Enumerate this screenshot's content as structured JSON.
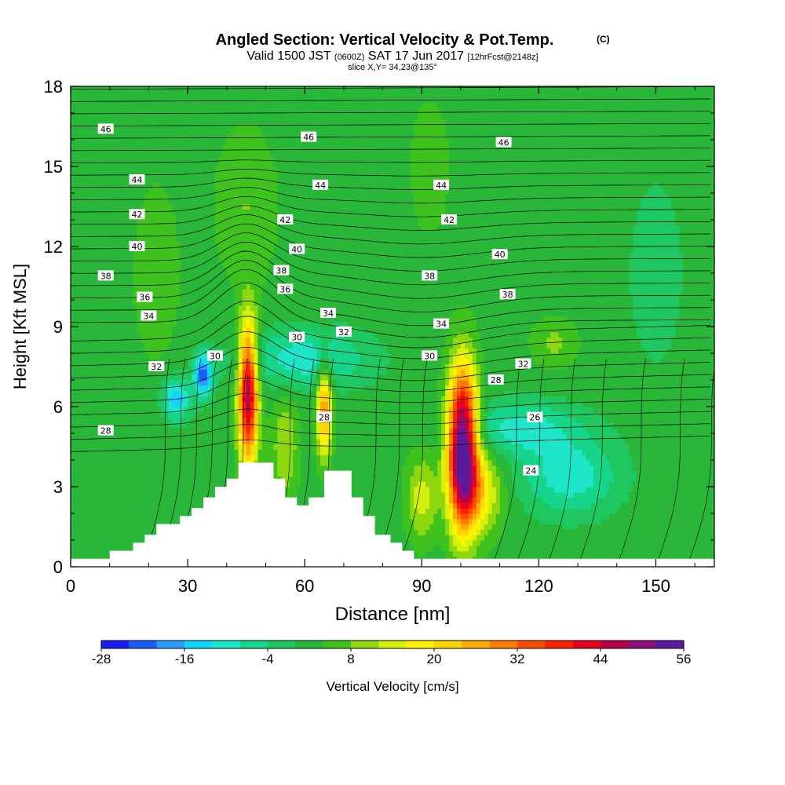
{
  "chart_data": {
    "type": "heatmap",
    "title": "Angled Section: Vertical Velocity & Pot.Temp.",
    "title_suffix": "(C)",
    "subtitle": {
      "valid_prefix": "Valid 1500 JST",
      "zulu": "(0600Z)",
      "date": "SAT 17 Jun 2017",
      "forecast": "[12hrFcst@2148z]"
    },
    "slice": "slice X,Y= 34,23@135°",
    "xlabel": "Distance [nm]",
    "ylabel": "Height [Kft MSL]",
    "xlim": [
      0,
      165
    ],
    "ylim": [
      0,
      18
    ],
    "x_ticks": [
      "0",
      "30",
      "60",
      "90",
      "120",
      "150"
    ],
    "y_ticks": [
      "0",
      "3",
      "6",
      "9",
      "12",
      "15",
      "18"
    ],
    "colorbar": {
      "label": "Vertical Velocity [cm/s]",
      "tick_labels": [
        "-28",
        "-16",
        "-4",
        "8",
        "20",
        "32",
        "44",
        "56"
      ],
      "min": -28,
      "max": 56,
      "step": 4,
      "colors": [
        "#1b1bff",
        "#1c5cff",
        "#2a9bff",
        "#12d5ff",
        "#1fe6c8",
        "#16d68c",
        "#1ec760",
        "#29b73a",
        "#3fc21e",
        "#8fd80f",
        "#d6f00d",
        "#fff200",
        "#ffd400",
        "#ffaa00",
        "#ff7a00",
        "#ff4d00",
        "#ff2000",
        "#e8001e",
        "#b8004a",
        "#8e0e7a",
        "#5a1a9e"
      ]
    },
    "terrain_profile": [
      [
        0,
        0.3
      ],
      [
        10,
        0.3
      ],
      [
        10,
        0.6
      ],
      [
        16,
        0.6
      ],
      [
        16,
        0.9
      ],
      [
        19,
        0.9
      ],
      [
        19,
        1.2
      ],
      [
        22,
        1.2
      ],
      [
        22,
        1.6
      ],
      [
        28,
        1.6
      ],
      [
        28,
        1.9
      ],
      [
        31,
        1.9
      ],
      [
        31,
        2.2
      ],
      [
        34,
        2.2
      ],
      [
        34,
        2.6
      ],
      [
        37,
        2.6
      ],
      [
        37,
        3.0
      ],
      [
        40,
        3.0
      ],
      [
        40,
        3.3
      ],
      [
        43,
        3.3
      ],
      [
        43,
        3.9
      ],
      [
        52,
        3.9
      ],
      [
        52,
        3.3
      ],
      [
        55,
        3.3
      ],
      [
        55,
        2.6
      ],
      [
        58,
        2.6
      ],
      [
        58,
        2.3
      ],
      [
        61,
        2.3
      ],
      [
        61,
        2.6
      ],
      [
        65,
        2.6
      ],
      [
        65,
        3.6
      ],
      [
        72,
        3.6
      ],
      [
        72,
        2.6
      ],
      [
        75,
        2.6
      ],
      [
        75,
        1.9
      ],
      [
        78,
        1.9
      ],
      [
        78,
        1.2
      ],
      [
        82,
        1.2
      ],
      [
        82,
        0.9
      ],
      [
        85,
        0.9
      ],
      [
        85,
        0.6
      ],
      [
        88,
        0.6
      ],
      [
        88,
        0.3
      ],
      [
        165,
        0.3
      ]
    ],
    "velocity_features": [
      {
        "x": 45.5,
        "z": 6.5,
        "peak": 46,
        "sx": 2.5,
        "sz": 2.6
      },
      {
        "x": 65,
        "z": 6.0,
        "peak": 26,
        "sx": 2.0,
        "sz": 1.8
      },
      {
        "x": 100.5,
        "z": 4.5,
        "peak": 58,
        "sx": 3.8,
        "sz": 2.9
      },
      {
        "x": 105,
        "z": 2.8,
        "peak": 16,
        "sx": 5.5,
        "sz": 1.5
      },
      {
        "x": 90,
        "z": 2.6,
        "peak": 12,
        "sx": 4.0,
        "sz": 1.6
      },
      {
        "x": 55,
        "z": 4.5,
        "peak": 10,
        "sx": 3.5,
        "sz": 2.0
      },
      {
        "x": 34,
        "z": 7.2,
        "peak": -24,
        "sx": 2.5,
        "sz": 0.8
      },
      {
        "x": 27,
        "z": 6.3,
        "peak": -18,
        "sx": 3.5,
        "sz": 0.8
      },
      {
        "x": 60,
        "z": 7.8,
        "peak": -13,
        "sx": 16,
        "sz": 1.1
      },
      {
        "x": 115,
        "z": 5.2,
        "peak": -12,
        "sx": 15,
        "sz": 1.0
      },
      {
        "x": 128,
        "z": 3.4,
        "peak": -13,
        "sx": 12,
        "sz": 1.4
      },
      {
        "x": 124,
        "z": 8.4,
        "peak": 7,
        "sx": 6,
        "sz": 0.9
      },
      {
        "x": 45,
        "z": 13.5,
        "peak": 6,
        "sx": 8,
        "sz": 3.0
      },
      {
        "x": 22,
        "z": 11,
        "peak": 4,
        "sx": 7,
        "sz": 4.0
      },
      {
        "x": 92,
        "z": 15,
        "peak": 4,
        "sx": 6,
        "sz": 3.0
      },
      {
        "x": 150,
        "z": 11,
        "peak": -4,
        "sx": 8,
        "sz": 4.0
      }
    ],
    "pot_temp_labels": [
      {
        "text": "46",
        "x": 9,
        "z": 16.4
      },
      {
        "text": "46",
        "x": 61,
        "z": 16.1
      },
      {
        "text": "46",
        "x": 111,
        "z": 15.9
      },
      {
        "text": "44",
        "x": 17,
        "z": 14.5
      },
      {
        "text": "44",
        "x": 64,
        "z": 14.3
      },
      {
        "text": "44",
        "x": 95,
        "z": 14.3
      },
      {
        "text": "42",
        "x": 17,
        "z": 13.2
      },
      {
        "text": "42",
        "x": 55,
        "z": 13.0
      },
      {
        "text": "42",
        "x": 97,
        "z": 13.0
      },
      {
        "text": "40",
        "x": 17,
        "z": 12.0
      },
      {
        "text": "40",
        "x": 58,
        "z": 11.9
      },
      {
        "text": "40",
        "x": 110,
        "z": 11.7
      },
      {
        "text": "38",
        "x": 9,
        "z": 10.9
      },
      {
        "text": "38",
        "x": 54,
        "z": 11.1
      },
      {
        "text": "38",
        "x": 92,
        "z": 10.9
      },
      {
        "text": "38",
        "x": 112,
        "z": 10.2
      },
      {
        "text": "36",
        "x": 19,
        "z": 10.1
      },
      {
        "text": "36",
        "x": 55,
        "z": 10.4
      },
      {
        "text": "34",
        "x": 20,
        "z": 9.4
      },
      {
        "text": "34",
        "x": 66,
        "z": 9.5
      },
      {
        "text": "34",
        "x": 95,
        "z": 9.1
      },
      {
        "text": "32",
        "x": 22,
        "z": 7.5
      },
      {
        "text": "32",
        "x": 70,
        "z": 8.8
      },
      {
        "text": "32",
        "x": 116,
        "z": 7.6
      },
      {
        "text": "30",
        "x": 37,
        "z": 7.9
      },
      {
        "text": "30",
        "x": 58,
        "z": 8.6
      },
      {
        "text": "30",
        "x": 92,
        "z": 7.9
      },
      {
        "text": "28",
        "x": 9,
        "z": 5.1
      },
      {
        "text": "28",
        "x": 65,
        "z": 5.6
      },
      {
        "text": "28",
        "x": 109,
        "z": 7.0
      },
      {
        "text": "26",
        "x": 119,
        "z": 5.6
      },
      {
        "text": "24",
        "x": 118,
        "z": 3.6
      }
    ]
  }
}
